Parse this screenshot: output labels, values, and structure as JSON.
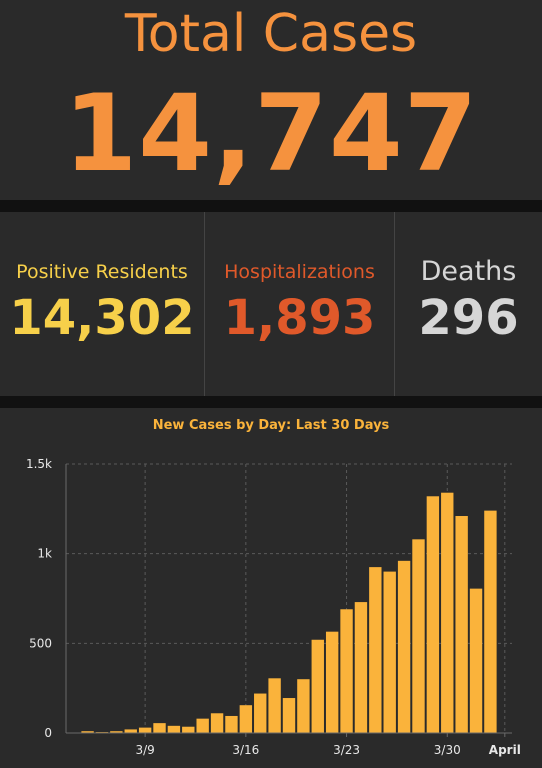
{
  "header": {
    "title": "Total Cases",
    "value": "14,747"
  },
  "stats": [
    {
      "label": "Positive Residents",
      "value": "14,302",
      "color": "#f7d04a"
    },
    {
      "label": "Hospitalizations",
      "value": "1,893",
      "color": "#e0592a"
    },
    {
      "label": "Deaths",
      "value": "296",
      "color": "#d6d6d6"
    }
  ],
  "colors": {
    "accent": "#f5923e",
    "bar": "#fab33b",
    "panel": "#2a2a2a",
    "background": "#111111"
  },
  "chart_data": {
    "type": "bar",
    "title": "New Cases by Day: Last 30 Days",
    "xlabel": "",
    "ylabel": "",
    "ylim": [
      0,
      1500
    ],
    "yticks": [
      0,
      500,
      1000,
      1500
    ],
    "ytick_labels": [
      "0",
      "500",
      "1k",
      "1.5k"
    ],
    "categories": [
      "3/4",
      "3/5",
      "3/6",
      "3/7",
      "3/8",
      "3/9",
      "3/10",
      "3/11",
      "3/12",
      "3/13",
      "3/14",
      "3/15",
      "3/16",
      "3/17",
      "3/18",
      "3/19",
      "3/20",
      "3/21",
      "3/22",
      "3/23",
      "3/24",
      "3/25",
      "3/26",
      "3/27",
      "3/28",
      "3/29",
      "3/30",
      "3/31",
      "4/1",
      "4/2",
      "4/3"
    ],
    "values": [
      0,
      10,
      5,
      10,
      20,
      30,
      55,
      40,
      35,
      80,
      110,
      95,
      155,
      220,
      305,
      195,
      300,
      520,
      565,
      690,
      730,
      925,
      900,
      960,
      1080,
      1320,
      1340,
      1210,
      805,
      1240,
      0
    ],
    "xtick_labels": [
      {
        "category": "3/9",
        "label": "3/9",
        "bold": false
      },
      {
        "category": "3/16",
        "label": "3/16",
        "bold": false
      },
      {
        "category": "3/23",
        "label": "3/23",
        "bold": false
      },
      {
        "category": "3/30",
        "label": "3/30",
        "bold": false
      },
      {
        "category": "4/3",
        "label": "April",
        "bold": true
      }
    ],
    "grid": true,
    "legend": "none"
  }
}
